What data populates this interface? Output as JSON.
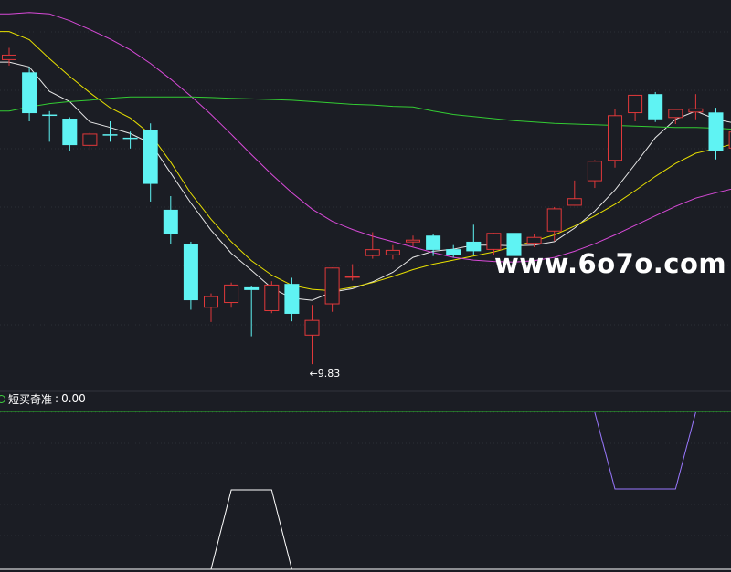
{
  "watermark": "www.6o7o.com",
  "indicator": {
    "name": "短买奇准",
    "separator": ": ",
    "value": "0.00"
  },
  "low_marker": {
    "arrow": "←",
    "value": "9.83"
  },
  "colors": {
    "background": "#1b1d24",
    "grid": "#2b2e36",
    "up_candle": "#e0383a",
    "down_candle": "#5ff3f3",
    "ma_short": "#e8e8e8",
    "ma_mid": "#e8e000",
    "ma_long": "#d84ad8",
    "ma_longest": "#33cc33",
    "signal_up": "#ffffff",
    "signal_down": "#9a78ff",
    "indicator_baseline": "#2dbf2d"
  },
  "chart_data": [
    {
      "type": "candlestick",
      "price_range": [
        9.55,
        15.05
      ],
      "candles": [
        {
          "o": 14.3,
          "h": 14.48,
          "l": 14.22,
          "c": 14.38
        },
        {
          "o": 14.12,
          "h": 14.2,
          "l": 13.4,
          "c": 13.52
        },
        {
          "o": 13.5,
          "h": 13.55,
          "l": 13.1,
          "c": 13.48
        },
        {
          "o": 13.44,
          "h": 13.46,
          "l": 12.97,
          "c": 13.05
        },
        {
          "o": 13.04,
          "h": 13.24,
          "l": 12.98,
          "c": 13.22
        },
        {
          "o": 13.21,
          "h": 13.4,
          "l": 13.1,
          "c": 13.19
        },
        {
          "o": 13.16,
          "h": 13.25,
          "l": 13.0,
          "c": 13.14
        },
        {
          "o": 13.27,
          "h": 13.37,
          "l": 12.22,
          "c": 12.48
        },
        {
          "o": 12.1,
          "h": 12.3,
          "l": 11.6,
          "c": 11.74
        },
        {
          "o": 11.6,
          "h": 11.63,
          "l": 10.63,
          "c": 10.77
        },
        {
          "o": 10.66,
          "h": 10.87,
          "l": 10.45,
          "c": 10.83
        },
        {
          "o": 10.73,
          "h": 11.03,
          "l": 10.66,
          "c": 11.0
        },
        {
          "o": 10.96,
          "h": 10.98,
          "l": 10.24,
          "c": 10.92
        },
        {
          "o": 10.61,
          "h": 11.05,
          "l": 10.58,
          "c": 11.0
        },
        {
          "o": 11.01,
          "h": 11.1,
          "l": 10.46,
          "c": 10.57
        },
        {
          "o": 10.25,
          "h": 10.7,
          "l": 9.83,
          "c": 10.48
        },
        {
          "o": 10.71,
          "h": 11.25,
          "l": 10.6,
          "c": 11.25
        },
        {
          "o": 11.1,
          "h": 11.3,
          "l": 11.06,
          "c": 11.12
        },
        {
          "o": 11.42,
          "h": 11.77,
          "l": 11.38,
          "c": 11.52
        },
        {
          "o": 11.43,
          "h": 11.58,
          "l": 11.37,
          "c": 11.51
        },
        {
          "o": 11.62,
          "h": 11.72,
          "l": 11.56,
          "c": 11.66
        },
        {
          "o": 11.72,
          "h": 11.75,
          "l": 11.42,
          "c": 11.51
        },
        {
          "o": 11.52,
          "h": 11.58,
          "l": 11.4,
          "c": 11.44
        },
        {
          "o": 11.63,
          "h": 11.88,
          "l": 11.43,
          "c": 11.49
        },
        {
          "o": 11.51,
          "h": 11.76,
          "l": 11.44,
          "c": 11.76
        },
        {
          "o": 11.76,
          "h": 11.77,
          "l": 11.36,
          "c": 11.42
        },
        {
          "o": 11.6,
          "h": 11.75,
          "l": 11.55,
          "c": 11.7
        },
        {
          "o": 11.78,
          "h": 12.14,
          "l": 11.64,
          "c": 12.12
        },
        {
          "o": 12.16,
          "h": 12.53,
          "l": 12.16,
          "c": 12.27
        },
        {
          "o": 12.52,
          "h": 12.83,
          "l": 12.42,
          "c": 12.82
        },
        {
          "o": 12.82,
          "h": 13.58,
          "l": 12.72,
          "c": 13.49
        },
        {
          "o": 13.52,
          "h": 13.79,
          "l": 13.4,
          "c": 13.79
        },
        {
          "o": 13.8,
          "h": 13.83,
          "l": 13.39,
          "c": 13.43
        },
        {
          "o": 13.45,
          "h": 13.58,
          "l": 13.36,
          "c": 13.58
        },
        {
          "o": 13.53,
          "h": 13.8,
          "l": 13.43,
          "c": 13.59
        },
        {
          "o": 13.53,
          "h": 13.6,
          "l": 12.84,
          "c": 12.97
        },
        {
          "o": 13.0,
          "h": 13.35,
          "l": 13.0,
          "c": 13.25
        }
      ],
      "moving_averages": [
        {
          "color_key": "ma_short",
          "values": [
            14.27,
            14.2,
            13.84,
            13.69,
            13.39,
            13.31,
            13.22,
            13.08,
            12.64,
            12.2,
            11.8,
            11.46,
            11.21,
            10.95,
            10.8,
            10.77,
            10.89,
            10.94,
            11.04,
            11.18,
            11.4,
            11.49,
            11.52,
            11.58,
            11.58,
            11.57,
            11.58,
            11.63,
            11.83,
            12.08,
            12.39,
            12.77,
            13.16,
            13.43,
            13.55,
            13.43,
            13.37
          ]
        },
        {
          "color_key": "ma_mid",
          "values": [
            14.72,
            14.6,
            14.32,
            14.06,
            13.82,
            13.6,
            13.45,
            13.21,
            12.8,
            12.34,
            11.96,
            11.63,
            11.35,
            11.14,
            10.99,
            10.93,
            10.91,
            10.96,
            11.03,
            11.12,
            11.22,
            11.3,
            11.36,
            11.42,
            11.48,
            11.56,
            11.64,
            11.73,
            11.86,
            12.01,
            12.18,
            12.38,
            12.59,
            12.78,
            12.93,
            13.0,
            13.08
          ]
        },
        {
          "color_key": "ma_long",
          "values": [
            14.98,
            15.0,
            14.98,
            14.88,
            14.75,
            14.61,
            14.45,
            14.25,
            14.02,
            13.77,
            13.5,
            13.21,
            12.91,
            12.62,
            12.35,
            12.11,
            11.93,
            11.81,
            11.71,
            11.63,
            11.55,
            11.47,
            11.4,
            11.36,
            11.34,
            11.33,
            11.35,
            11.4,
            11.49,
            11.6,
            11.73,
            11.87,
            12.01,
            12.15,
            12.27,
            12.35,
            12.42
          ]
        },
        {
          "color_key": "ma_longest",
          "values": [
            13.55,
            13.61,
            13.66,
            13.69,
            13.71,
            13.74,
            13.76,
            13.76,
            13.76,
            13.76,
            13.75,
            13.74,
            13.73,
            13.72,
            13.71,
            13.69,
            13.67,
            13.65,
            13.64,
            13.62,
            13.61,
            13.55,
            13.5,
            13.47,
            13.44,
            13.41,
            13.39,
            13.37,
            13.36,
            13.35,
            13.34,
            13.33,
            13.32,
            13.31,
            13.31,
            13.3,
            13.28
          ]
        }
      ]
    },
    {
      "type": "line",
      "title": "短买奇准",
      "value": 0.0,
      "range": [
        -1,
        1
      ],
      "up_values": [
        0,
        0,
        0,
        0,
        0,
        0,
        0,
        0,
        0,
        0,
        0,
        1,
        1,
        1,
        0,
        0,
        0,
        0,
        0,
        0,
        0,
        0,
        0,
        0,
        0,
        0,
        0,
        0,
        0,
        0,
        0,
        0,
        0,
        0,
        0,
        0,
        0
      ],
      "down_values": [
        0,
        0,
        0,
        0,
        0,
        0,
        0,
        0,
        0,
        0,
        0,
        0,
        0,
        0,
        0,
        0,
        0,
        0,
        0,
        0,
        0,
        0,
        0,
        0,
        0,
        0,
        0,
        0,
        0,
        0,
        -1,
        -1,
        -1,
        -1,
        0,
        0,
        0
      ]
    }
  ]
}
